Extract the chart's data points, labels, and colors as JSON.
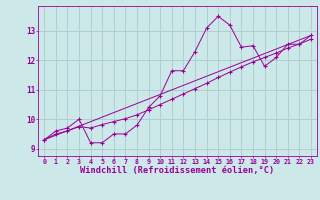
{
  "background_color": "#cce8e8",
  "grid_color": "#aacccc",
  "line_color": "#990099",
  "xlim": [
    -0.5,
    23.5
  ],
  "ylim": [
    8.75,
    13.85
  ],
  "xlabel": "Windchill (Refroidissement éolien,°C)",
  "xlabel_fontsize": 6.2,
  "xtick_fontsize": 4.8,
  "ytick_fontsize": 5.5,
  "curve1_x": [
    0,
    1,
    2,
    3,
    4,
    5,
    6,
    7,
    8,
    9,
    10,
    11,
    12,
    13,
    14,
    15,
    16,
    17,
    18,
    19,
    20,
    21,
    22,
    23
  ],
  "curve1_y": [
    9.3,
    9.6,
    9.7,
    10.0,
    9.2,
    9.2,
    9.5,
    9.5,
    9.8,
    10.4,
    10.8,
    11.65,
    11.65,
    12.3,
    13.1,
    13.5,
    13.2,
    12.45,
    12.5,
    11.8,
    12.1,
    12.55,
    12.55,
    12.85
  ],
  "curve2_x": [
    0,
    23
  ],
  "curve2_y": [
    9.3,
    12.85
  ],
  "curve3_x": [
    0,
    1,
    2,
    3,
    4,
    5,
    6,
    7,
    8,
    9,
    10,
    11,
    12,
    13,
    14,
    15,
    16,
    17,
    18,
    19,
    20,
    21,
    22,
    23
  ],
  "curve3_y": [
    9.3,
    9.5,
    9.6,
    9.75,
    9.7,
    9.82,
    9.92,
    10.02,
    10.15,
    10.32,
    10.5,
    10.68,
    10.86,
    11.04,
    11.22,
    11.42,
    11.6,
    11.78,
    11.95,
    12.1,
    12.25,
    12.42,
    12.56,
    12.72
  ]
}
